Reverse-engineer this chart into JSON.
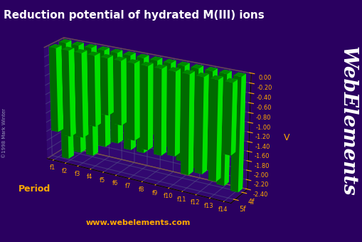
{
  "title": "Reduction potential of hydrated M(III) ions",
  "ylabel": "V",
  "period_label": "Period",
  "watermark": "www.webelements.com",
  "webelements_text": "WebElements",
  "copyright": "©1998 Mark Winter",
  "background_color": "#2a0060",
  "bar_color": "#00ff00",
  "floor_color": "#666677",
  "pane_color": "#3a0088",
  "border_color": "#bb7700",
  "f_labels": [
    "f1",
    "f2",
    "f3",
    "f4",
    "f5",
    "f6",
    "f7",
    "f8",
    "f9",
    "f10",
    "f11",
    "f12",
    "f13",
    "f14"
  ],
  "period_labels": [
    "4f",
    "5f"
  ],
  "data_4f": [
    -2.52,
    -2.32,
    -2.32,
    -2.06,
    -1.92,
    -2.0,
    -2.0,
    -1.55,
    -1.74,
    -1.99,
    -2.07,
    -2.05,
    -2.3,
    -2.37
  ],
  "data_5f": [
    -1.79,
    -1.83,
    -1.79,
    -1.49,
    -1.19,
    -1.34,
    -1.6,
    -1.74,
    -1.79,
    -1.74,
    -2.07,
    -1.98,
    -2.07,
    -1.46
  ],
  "zlim_min": -2.4,
  "zlim_max": 0.0,
  "zticks": [
    0.0,
    -0.2,
    -0.4,
    -0.6,
    -0.8,
    -1.0,
    -1.2,
    -1.4,
    -1.6,
    -1.8,
    -2.0,
    -2.2,
    -2.4
  ],
  "title_color": "#ffffff",
  "tick_color": "#ffaa00",
  "axis_label_color": "#ffaa00",
  "url_color": "#ffaa00",
  "title_fontsize": 11,
  "tick_fontsize": 6,
  "axis_label_fontsize": 9,
  "elev": 22,
  "azim": -60
}
